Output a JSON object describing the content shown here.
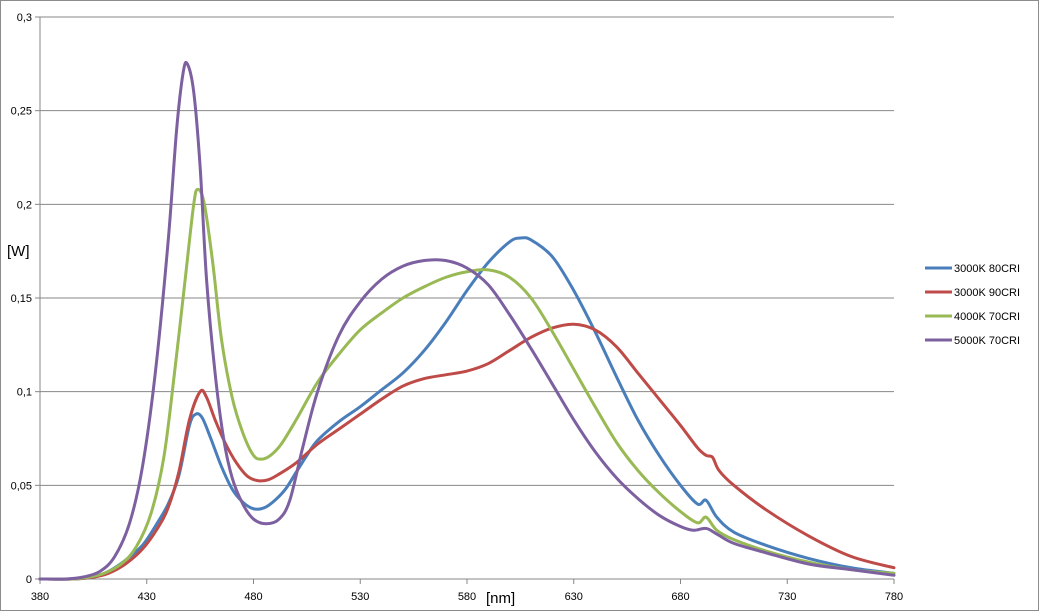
{
  "chart_data": {
    "type": "line",
    "title": "",
    "xlabel": "[nm]",
    "ylabel": "[W]",
    "xlim": [
      380,
      780
    ],
    "ylim": [
      0,
      0.3
    ],
    "x_ticks": [
      "380",
      "430",
      "480",
      "530",
      "580",
      "630",
      "680",
      "730",
      "780"
    ],
    "y_ticks": [
      "0",
      "0,05",
      "0,1",
      "0,15",
      "0,2",
      "0,25",
      "0,3"
    ],
    "grid": "horizontal",
    "legend_position": "right",
    "series": [
      {
        "name": "3000K 80CRI",
        "color": "#4a7ebb",
        "points": [
          [
            380,
            0
          ],
          [
            395,
            0
          ],
          [
            405,
            0.001
          ],
          [
            412,
            0.004
          ],
          [
            420,
            0.01
          ],
          [
            428,
            0.018
          ],
          [
            435,
            0.03
          ],
          [
            440,
            0.04
          ],
          [
            445,
            0.055
          ],
          [
            450,
            0.082
          ],
          [
            453,
            0.088
          ],
          [
            456,
            0.086
          ],
          [
            460,
            0.075
          ],
          [
            465,
            0.06
          ],
          [
            470,
            0.048
          ],
          [
            475,
            0.041
          ],
          [
            480,
            0.0375
          ],
          [
            485,
            0.038
          ],
          [
            490,
            0.042
          ],
          [
            495,
            0.048
          ],
          [
            500,
            0.057
          ],
          [
            505,
            0.066
          ],
          [
            510,
            0.074
          ],
          [
            520,
            0.084
          ],
          [
            530,
            0.092
          ],
          [
            540,
            0.101
          ],
          [
            550,
            0.11
          ],
          [
            560,
            0.122
          ],
          [
            570,
            0.137
          ],
          [
            580,
            0.154
          ],
          [
            590,
            0.169
          ],
          [
            600,
            0.18
          ],
          [
            605,
            0.182
          ],
          [
            610,
            0.181
          ],
          [
            620,
            0.172
          ],
          [
            630,
            0.154
          ],
          [
            640,
            0.132
          ],
          [
            650,
            0.108
          ],
          [
            660,
            0.085
          ],
          [
            670,
            0.066
          ],
          [
            680,
            0.05
          ],
          [
            688,
            0.04
          ],
          [
            692,
            0.042
          ],
          [
            697,
            0.033
          ],
          [
            705,
            0.025
          ],
          [
            720,
            0.018
          ],
          [
            740,
            0.011
          ],
          [
            760,
            0.006
          ],
          [
            780,
            0.003
          ]
        ]
      },
      {
        "name": "3000K 90CRI",
        "color": "#be4b48",
        "points": [
          [
            380,
            0
          ],
          [
            395,
            0
          ],
          [
            405,
            0.001
          ],
          [
            412,
            0.003
          ],
          [
            420,
            0.008
          ],
          [
            428,
            0.016
          ],
          [
            435,
            0.027
          ],
          [
            440,
            0.038
          ],
          [
            445,
            0.057
          ],
          [
            450,
            0.085
          ],
          [
            455,
            0.1
          ],
          [
            458,
            0.097
          ],
          [
            462,
            0.085
          ],
          [
            467,
            0.072
          ],
          [
            472,
            0.062
          ],
          [
            477,
            0.055
          ],
          [
            482,
            0.0525
          ],
          [
            487,
            0.053
          ],
          [
            492,
            0.056
          ],
          [
            500,
            0.062
          ],
          [
            510,
            0.072
          ],
          [
            520,
            0.08
          ],
          [
            530,
            0.088
          ],
          [
            540,
            0.096
          ],
          [
            550,
            0.103
          ],
          [
            560,
            0.107
          ],
          [
            570,
            0.109
          ],
          [
            580,
            0.111
          ],
          [
            590,
            0.115
          ],
          [
            600,
            0.122
          ],
          [
            610,
            0.129
          ],
          [
            620,
            0.134
          ],
          [
            630,
            0.136
          ],
          [
            640,
            0.133
          ],
          [
            650,
            0.124
          ],
          [
            660,
            0.11
          ],
          [
            670,
            0.096
          ],
          [
            680,
            0.082
          ],
          [
            688,
            0.07
          ],
          [
            692,
            0.066
          ],
          [
            695,
            0.065
          ],
          [
            698,
            0.058
          ],
          [
            705,
            0.05
          ],
          [
            720,
            0.037
          ],
          [
            740,
            0.023
          ],
          [
            760,
            0.012
          ],
          [
            780,
            0.006
          ]
        ]
      },
      {
        "name": "4000K 70CRI",
        "color": "#98b954",
        "points": [
          [
            380,
            0
          ],
          [
            395,
            0
          ],
          [
            403,
            0.001
          ],
          [
            410,
            0.003
          ],
          [
            418,
            0.008
          ],
          [
            425,
            0.017
          ],
          [
            432,
            0.035
          ],
          [
            438,
            0.065
          ],
          [
            443,
            0.11
          ],
          [
            448,
            0.16
          ],
          [
            452,
            0.2
          ],
          [
            454,
            0.208
          ],
          [
            457,
            0.2
          ],
          [
            461,
            0.168
          ],
          [
            465,
            0.128
          ],
          [
            470,
            0.097
          ],
          [
            475,
            0.078
          ],
          [
            480,
            0.066
          ],
          [
            484,
            0.064
          ],
          [
            488,
            0.066
          ],
          [
            493,
            0.072
          ],
          [
            500,
            0.085
          ],
          [
            510,
            0.105
          ],
          [
            520,
            0.12
          ],
          [
            530,
            0.133
          ],
          [
            540,
            0.142
          ],
          [
            550,
            0.15
          ],
          [
            560,
            0.156
          ],
          [
            570,
            0.161
          ],
          [
            580,
            0.164
          ],
          [
            590,
            0.165
          ],
          [
            600,
            0.161
          ],
          [
            610,
            0.15
          ],
          [
            620,
            0.132
          ],
          [
            630,
            0.112
          ],
          [
            640,
            0.092
          ],
          [
            650,
            0.073
          ],
          [
            660,
            0.058
          ],
          [
            670,
            0.046
          ],
          [
            680,
            0.036
          ],
          [
            688,
            0.03
          ],
          [
            692,
            0.033
          ],
          [
            697,
            0.026
          ],
          [
            705,
            0.021
          ],
          [
            720,
            0.015
          ],
          [
            740,
            0.009
          ],
          [
            760,
            0.005
          ],
          [
            780,
            0.003
          ]
        ]
      },
      {
        "name": "5000K 70CRI",
        "color": "#7d60a0",
        "points": [
          [
            380,
            0
          ],
          [
            392,
            0
          ],
          [
            400,
            0.001
          ],
          [
            408,
            0.004
          ],
          [
            415,
            0.012
          ],
          [
            422,
            0.03
          ],
          [
            428,
            0.06
          ],
          [
            434,
            0.11
          ],
          [
            440,
            0.18
          ],
          [
            444,
            0.24
          ],
          [
            447,
            0.27
          ],
          [
            449,
            0.275
          ],
          [
            452,
            0.26
          ],
          [
            455,
            0.22
          ],
          [
            458,
            0.16
          ],
          [
            462,
            0.11
          ],
          [
            466,
            0.075
          ],
          [
            470,
            0.054
          ],
          [
            475,
            0.04
          ],
          [
            480,
            0.032
          ],
          [
            486,
            0.0295
          ],
          [
            492,
            0.032
          ],
          [
            497,
            0.042
          ],
          [
            503,
            0.07
          ],
          [
            510,
            0.1
          ],
          [
            520,
            0.13
          ],
          [
            530,
            0.148
          ],
          [
            540,
            0.16
          ],
          [
            550,
            0.167
          ],
          [
            560,
            0.17
          ],
          [
            570,
            0.17
          ],
          [
            580,
            0.166
          ],
          [
            590,
            0.157
          ],
          [
            600,
            0.141
          ],
          [
            610,
            0.123
          ],
          [
            620,
            0.104
          ],
          [
            630,
            0.085
          ],
          [
            640,
            0.068
          ],
          [
            650,
            0.054
          ],
          [
            660,
            0.043
          ],
          [
            670,
            0.034
          ],
          [
            680,
            0.028
          ],
          [
            686,
            0.026
          ],
          [
            692,
            0.027
          ],
          [
            697,
            0.024
          ],
          [
            705,
            0.019
          ],
          [
            720,
            0.014
          ],
          [
            740,
            0.008
          ],
          [
            760,
            0.005
          ],
          [
            780,
            0.002
          ]
        ]
      }
    ]
  }
}
